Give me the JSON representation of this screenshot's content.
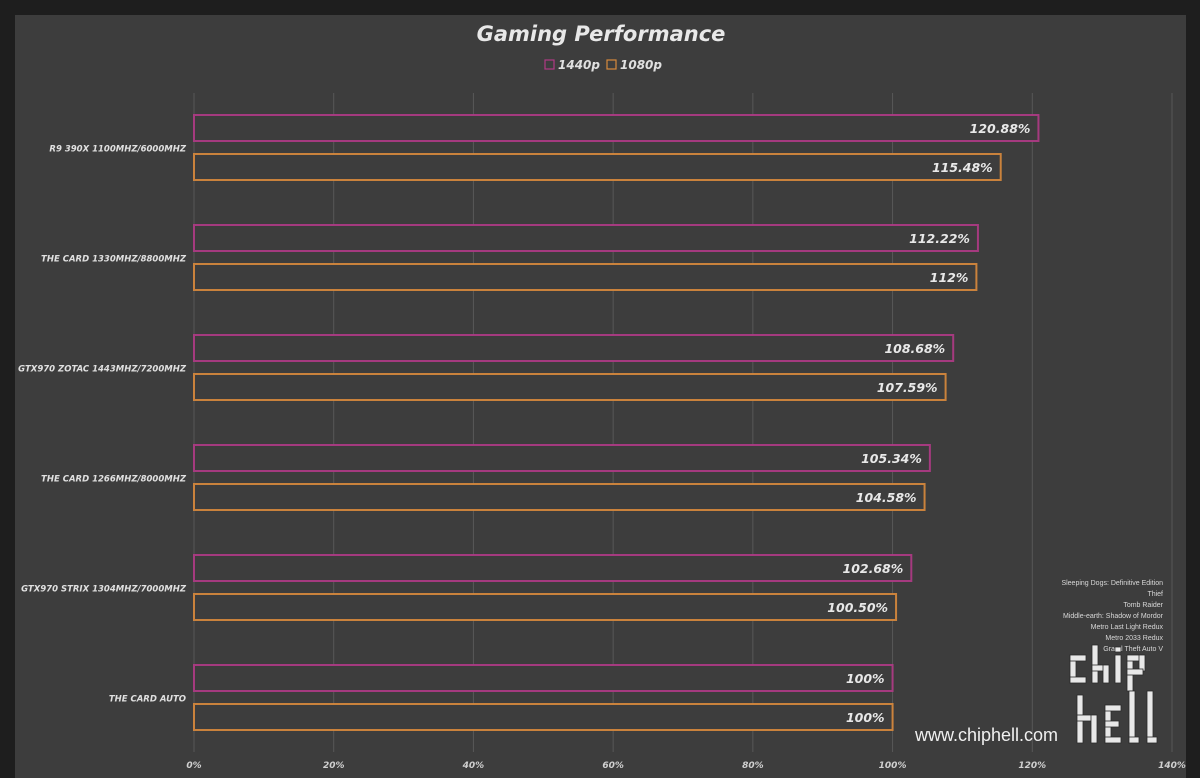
{
  "chart_data": {
    "type": "bar",
    "orientation": "horizontal",
    "title": "Gaming Performance",
    "categories": [
      "R9 390X  1100MHZ/6000MHZ",
      "THE CARD 1330MHZ/8800MHZ",
      "GTX970 ZOTAC 1443MHZ/7200MHZ",
      "THE CARD 1266MHZ/8000MHZ",
      "GTX970 STRIX 1304MHZ/7000MHZ",
      "THE CARD AUTO"
    ],
    "series": [
      {
        "name": "1440p",
        "color": "#b03a86",
        "values": [
          120.88,
          112.22,
          108.68,
          105.34,
          102.68,
          100
        ],
        "labels": [
          "120.88%",
          "112.22%",
          "108.68%",
          "105.34%",
          "102.68%",
          "100%"
        ]
      },
      {
        "name": "1080p",
        "color": "#d98a3c",
        "values": [
          115.48,
          112,
          107.59,
          104.58,
          100.5,
          100
        ],
        "labels": [
          "115.48%",
          "112%",
          "107.59%",
          "104.58%",
          "100.50%",
          "100%"
        ]
      }
    ],
    "xlim": [
      0,
      140
    ],
    "x_ticks": [
      "0%",
      "20%",
      "40%",
      "60%",
      "80%",
      "100%",
      "120%",
      "140%"
    ],
    "grid": true,
    "legend": "top-center"
  },
  "games_note": [
    "Sleeping Dogs: Definitive Edition",
    "Thief",
    "Tomb Raider",
    "Middle-earth: Shadow of Mordor",
    "Metro Last Light Redux",
    "Metro 2033 Redux",
    "Grand Theft Auto V"
  ],
  "watermark": {
    "url": "www.chiphell.com",
    "logo_text": "chip hell"
  },
  "colors": {
    "background": "#3d3d3d",
    "text": "#e6e6e6",
    "grid": "#555555"
  }
}
